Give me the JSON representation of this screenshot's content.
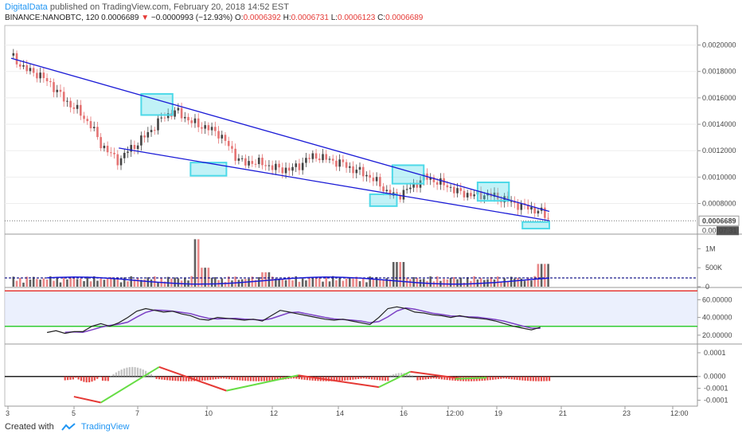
{
  "header": {
    "author": "DigitalData",
    "published_text": "published on TradingView.com, February 20, 2018 14:52 EST"
  },
  "quote": {
    "symbol": "BINANCE:NANOBTC, 120",
    "last": "0.0006689",
    "arrow": "▼",
    "change": "−0.0000993 (−12.93%)",
    "open_label": "O:",
    "open": "0.0006392",
    "high_label": "H:",
    "high": "0.0006731",
    "low_label": "L:",
    "low": "0.0006123",
    "close_label": "C:",
    "close": "0.0006689"
  },
  "footer": {
    "created_with": "Created with",
    "brand": "TradingView"
  },
  "colors": {
    "up": "#444444",
    "down": "#e57373",
    "trend": "#1a1ad6",
    "box": "#4dd9e8",
    "rsi": "#222222",
    "rsi_ma": "#7b3fc4",
    "level": "#33cc33"
  },
  "chart_data": {
    "type": "candlestick",
    "price_axis": {
      "ticks": [
        "0.0020000",
        "0.0018000",
        "0.0016000",
        "0.0014000",
        "0.0012000",
        "0.0010000",
        "0.0008000"
      ],
      "values": [
        0.002,
        0.0018,
        0.0016,
        0.0014,
        0.0012,
        0.001,
        0.0008
      ],
      "last_price_label": "0.0006689",
      "axis_label_bottom": "0.00",
      "countdown": "07:31",
      "ylim": [
        0.00058,
        0.0021
      ]
    },
    "x_axis": {
      "ticks": [
        "3",
        "5",
        "7",
        "10",
        "12",
        "14",
        "16",
        "12:00",
        "19",
        "21",
        "23",
        "12:00"
      ]
    },
    "price_path": [
      [
        0,
        0.00192
      ],
      [
        3,
        0.00182
      ],
      [
        6,
        0.00178
      ],
      [
        9,
        0.0017
      ],
      [
        12,
        0.00158
      ],
      [
        15,
        0.0015
      ],
      [
        18,
        0.00138
      ],
      [
        20,
        0.00125
      ],
      [
        22,
        0.00118
      ],
      [
        24,
        0.00112
      ],
      [
        26,
        0.0012
      ],
      [
        28,
        0.00125
      ],
      [
        31,
        0.00135
      ],
      [
        34,
        0.00146
      ],
      [
        37,
        0.0015
      ],
      [
        40,
        0.00142
      ],
      [
        43,
        0.00138
      ],
      [
        46,
        0.00134
      ],
      [
        48,
        0.00126
      ],
      [
        50,
        0.00116
      ],
      [
        52,
        0.0011
      ],
      [
        54,
        0.00112
      ],
      [
        56,
        0.0011
      ],
      [
        58,
        0.00108
      ],
      [
        60,
        0.00106
      ],
      [
        62,
        0.00106
      ],
      [
        64,
        0.00108
      ],
      [
        66,
        0.00114
      ],
      [
        68,
        0.00116
      ],
      [
        70,
        0.00114
      ],
      [
        72,
        0.00112
      ],
      [
        74,
        0.0011
      ],
      [
        76,
        0.00106
      ],
      [
        78,
        0.00104
      ],
      [
        80,
        0.001
      ],
      [
        82,
        0.00095
      ],
      [
        84,
        0.00088
      ],
      [
        86,
        0.00085
      ],
      [
        88,
        0.0009
      ],
      [
        90,
        0.00094
      ],
      [
        92,
        0.001
      ],
      [
        94,
        0.00098
      ],
      [
        96,
        0.00095
      ],
      [
        98,
        0.00092
      ],
      [
        100,
        0.00088
      ],
      [
        102,
        0.00087
      ],
      [
        104,
        0.00086
      ],
      [
        106,
        0.00087
      ],
      [
        108,
        0.00085
      ],
      [
        110,
        0.00083
      ],
      [
        112,
        0.0008
      ],
      [
        114,
        0.00078
      ],
      [
        116,
        0.00076
      ],
      [
        118,
        0.00074
      ],
      [
        120,
        0.00068
      ]
    ],
    "trendlines": [
      {
        "name": "upper",
        "from": [
          0,
          0.0019
        ],
        "to": [
          120,
          0.00074
        ]
      },
      {
        "name": "lower",
        "from": [
          24,
          0.00122
        ],
        "to": [
          120,
          0.00067
        ]
      }
    ],
    "highlight_boxes": [
      {
        "x": [
          29,
          36
        ],
        "y": [
          0.00147,
          0.00163
        ]
      },
      {
        "x": [
          40,
          48
        ],
        "y": [
          0.00101,
          0.00111
        ]
      },
      {
        "x": [
          80,
          86
        ],
        "y": [
          0.00078,
          0.00087
        ]
      },
      {
        "x": [
          85,
          92
        ],
        "y": [
          0.00095,
          0.00109
        ]
      },
      {
        "x": [
          104,
          111
        ],
        "y": [
          0.00082,
          0.00096
        ]
      },
      {
        "x": [
          114,
          120
        ],
        "y": [
          0.00061,
          0.00066
        ]
      }
    ],
    "volume": {
      "ticks": [
        "1M",
        "500K",
        "0"
      ],
      "values": [
        1000000,
        500000,
        0
      ],
      "ylim": [
        0,
        1300000
      ],
      "ma_level": 230000
    },
    "rsi": {
      "ticks": [
        "60.00000",
        "40.00000",
        "20.00000"
      ],
      "values": [
        60,
        40,
        20
      ],
      "ylim": [
        10,
        72
      ],
      "upper_level": 70,
      "lower_level": 30,
      "path": [
        [
          8,
          23
        ],
        [
          10,
          25
        ],
        [
          12,
          22
        ],
        [
          14,
          24
        ],
        [
          16,
          24
        ],
        [
          18,
          30
        ],
        [
          20,
          33
        ],
        [
          22,
          30
        ],
        [
          24,
          34
        ],
        [
          26,
          40
        ],
        [
          28,
          47
        ],
        [
          30,
          50
        ],
        [
          32,
          48
        ],
        [
          34,
          46
        ],
        [
          36,
          47
        ],
        [
          38,
          44
        ],
        [
          40,
          42
        ],
        [
          42,
          38
        ],
        [
          44,
          37
        ],
        [
          46,
          40
        ],
        [
          48,
          39
        ],
        [
          50,
          38
        ],
        [
          52,
          37
        ],
        [
          54,
          38
        ],
        [
          56,
          36
        ],
        [
          58,
          42
        ],
        [
          60,
          48
        ],
        [
          62,
          46
        ],
        [
          64,
          44
        ],
        [
          66,
          42
        ],
        [
          68,
          40
        ],
        [
          70,
          38
        ],
        [
          72,
          37
        ],
        [
          74,
          38
        ],
        [
          76,
          36
        ],
        [
          78,
          34
        ],
        [
          80,
          32
        ],
        [
          82,
          40
        ],
        [
          84,
          50
        ],
        [
          86,
          52
        ],
        [
          88,
          50
        ],
        [
          90,
          46
        ],
        [
          92,
          45
        ],
        [
          94,
          43
        ],
        [
          96,
          42
        ],
        [
          98,
          40
        ],
        [
          100,
          42
        ],
        [
          102,
          40
        ],
        [
          104,
          39
        ],
        [
          106,
          38
        ],
        [
          108,
          36
        ],
        [
          110,
          33
        ],
        [
          112,
          30
        ],
        [
          114,
          28
        ],
        [
          116,
          26
        ],
        [
          118,
          29
        ]
      ]
    },
    "oscillator": {
      "ticks": [
        "0.0001",
        "0.0000",
        "-0.0001",
        "-0.0001"
      ],
      "values": [
        0.0001,
        0.0,
        -5e-05,
        -0.0001
      ],
      "ylim": [
        -0.000125,
        0.00013
      ],
      "divergence_lines": [
        {
          "color": "red",
          "from": [
            14,
            -8.5e-05
          ],
          "to": [
            20,
            -0.00011
          ]
        },
        {
          "color": "green",
          "from": [
            20,
            -0.00011
          ],
          "to": [
            33,
            4e-05
          ]
        },
        {
          "color": "red",
          "from": [
            33,
            4e-05
          ],
          "to": [
            48,
            -6e-05
          ]
        },
        {
          "color": "green",
          "from": [
            48,
            -6e-05
          ],
          "to": [
            64,
            5e-06
          ]
        },
        {
          "color": "red",
          "from": [
            64,
            5e-06
          ],
          "to": [
            82,
            -4.5e-05
          ]
        },
        {
          "color": "green",
          "from": [
            82,
            -4.5e-05
          ],
          "to": [
            89,
            2e-05
          ]
        },
        {
          "color": "red",
          "from": [
            89,
            2e-05
          ],
          "to": [
            100,
            -8e-06
          ]
        },
        {
          "color": "green",
          "from": [
            99,
            -1e-05
          ],
          "to": [
            106,
            -5e-06
          ]
        }
      ]
    }
  }
}
